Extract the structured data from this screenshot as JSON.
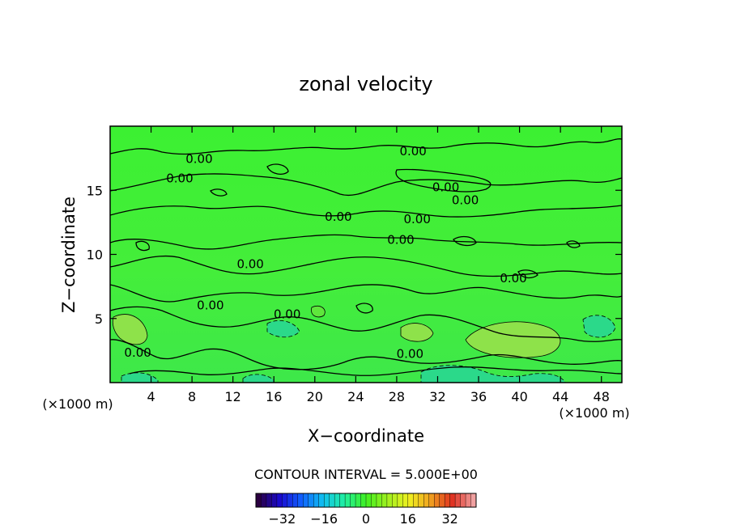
{
  "chart_data": {
    "type": "heatmap",
    "title": "zonal velocity",
    "xlabel": "X−coordinate",
    "ylabel": "Z−coordinate",
    "x_unit_left": "(×1000 m)",
    "x_unit_right": "(×1000 m)",
    "xlim": [
      0,
      50
    ],
    "ylim": [
      0,
      20
    ],
    "x_ticks": [
      4,
      8,
      12,
      16,
      20,
      24,
      28,
      32,
      36,
      40,
      44,
      48
    ],
    "y_ticks": [
      5,
      10,
      15
    ],
    "contour_interval_text": "CONTOUR INTERVAL = 5.000E+00",
    "contour_labels": [
      {
        "text": "0.00",
        "x": 8.7,
        "y": 17.5
      },
      {
        "text": "0.00",
        "x": 6.8,
        "y": 16.0
      },
      {
        "text": "0.00",
        "x": 29.6,
        "y": 18.1
      },
      {
        "text": "0.00",
        "x": 32.8,
        "y": 15.3
      },
      {
        "text": "0.00",
        "x": 34.7,
        "y": 14.3
      },
      {
        "text": "0.00",
        "x": 22.3,
        "y": 13.0
      },
      {
        "text": "0.00",
        "x": 30.0,
        "y": 12.8
      },
      {
        "text": "0.00",
        "x": 28.4,
        "y": 11.2
      },
      {
        "text": "0.00",
        "x": 13.7,
        "y": 9.3
      },
      {
        "text": "0.00",
        "x": 39.4,
        "y": 8.2
      },
      {
        "text": "0.00",
        "x": 9.8,
        "y": 6.1
      },
      {
        "text": "0.00",
        "x": 17.3,
        "y": 5.4
      },
      {
        "text": "0.00",
        "x": 2.7,
        "y": 2.4
      },
      {
        "text": "0.00",
        "x": 29.3,
        "y": 2.3
      }
    ],
    "colorbar": {
      "range": [
        -42,
        42
      ],
      "ticks": [
        -32,
        -16,
        0,
        16,
        32
      ],
      "colors": [
        "#2a0040",
        "#1a0ad0",
        "#1060ff",
        "#10c0f0",
        "#20f0a0",
        "#40f020",
        "#a0f020",
        "#f0f020",
        "#f0a020",
        "#e03020",
        "#f0a0a0"
      ]
    },
    "palette": {
      "background_field": "#3ff23a",
      "positive_patch": "#8ee24a",
      "negative_patch": "#27d88a"
    }
  }
}
